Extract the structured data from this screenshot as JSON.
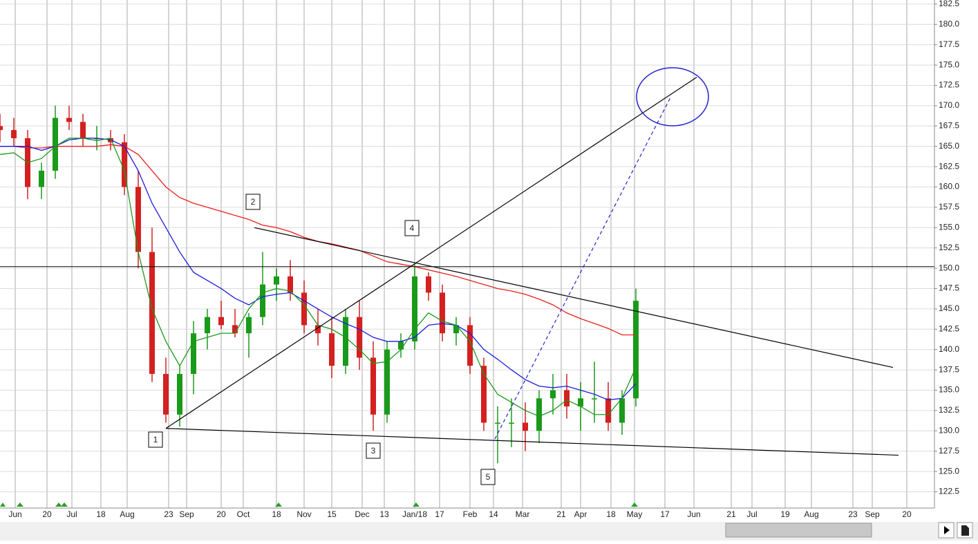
{
  "chart_data": {
    "type": "candlestick",
    "x": [
      0,
      5,
      10,
      15,
      20,
      25,
      30,
      35,
      40,
      45,
      50,
      55,
      60,
      65,
      70,
      75,
      80,
      85,
      90,
      95,
      100,
      105,
      110,
      115,
      120,
      125,
      130,
      135,
      140,
      145,
      150,
      155,
      160,
      165,
      170,
      175,
      180,
      185,
      190,
      195,
      200,
      205,
      210,
      215,
      220,
      225,
      230
    ],
    "open": [
      167.5,
      167,
      166,
      160,
      162,
      168.5,
      168,
      166,
      166,
      165.5,
      160,
      152,
      137,
      132,
      137,
      142,
      144,
      143,
      142,
      144,
      148,
      149,
      147,
      143,
      142,
      138,
      144,
      139,
      132,
      140,
      141,
      149,
      147,
      142,
      143,
      138,
      131,
      131,
      131,
      130,
      134,
      135,
      133,
      134,
      134,
      131,
      134
    ],
    "high": [
      169,
      168.5,
      167,
      163,
      170,
      170,
      169,
      167.5,
      167,
      166.5,
      162,
      155,
      139,
      138,
      143.5,
      145,
      146,
      145,
      144.5,
      152,
      150,
      151,
      148.5,
      145,
      144,
      145,
      146,
      141,
      141,
      142,
      150.5,
      149.5,
      148,
      144,
      144,
      139,
      133,
      134,
      133.5,
      135,
      137,
      137,
      136,
      138.5,
      136,
      135,
      147.5
    ],
    "low": [
      165.5,
      165,
      158.5,
      158.5,
      161,
      167,
      165,
      164.5,
      164.5,
      159,
      150,
      136,
      131,
      130.5,
      134.5,
      140,
      142.5,
      141.5,
      139,
      143,
      146,
      146,
      142,
      140.5,
      136.5,
      137,
      137.5,
      130,
      131,
      139,
      140,
      146,
      141,
      140.5,
      137,
      130,
      126,
      128,
      127.5,
      128.5,
      132,
      131.5,
      130,
      131,
      130,
      129.5,
      133
    ],
    "close": [
      167,
      166,
      160,
      162,
      168.5,
      168,
      166,
      166,
      165.5,
      160,
      152,
      137,
      132,
      137,
      142,
      144,
      143,
      142,
      144,
      148,
      149,
      147,
      143,
      142,
      138,
      144,
      139,
      132,
      140,
      141,
      149,
      147,
      142,
      143,
      138,
      131,
      131,
      131,
      130,
      134,
      135,
      133,
      134,
      134,
      131,
      134,
      146
    ],
    "up_color": "#1a9a1a",
    "down_color": "#d42020",
    "series": [
      {
        "color": "#e8201c",
        "values": [
          165,
          165,
          164.8,
          164.8,
          165,
          165,
          165,
          165,
          165.2,
          165,
          164,
          162,
          160,
          158.7,
          158,
          157.5,
          157,
          156.5,
          156,
          155.3,
          155,
          154.5,
          153.8,
          153.3,
          153,
          152.6,
          152.2,
          151.5,
          150.8,
          150.5,
          150.2,
          149.8,
          149.4,
          149,
          148.5,
          148,
          147.5,
          147.2,
          146.8,
          146.2,
          145.5,
          144.5,
          143.8,
          143.2,
          142.6,
          141.8,
          141.8
        ]
      },
      {
        "color": "#1c1ce0",
        "values": [
          165,
          165,
          165,
          164.5,
          165,
          165.8,
          166,
          166,
          165.8,
          165,
          162,
          158,
          155,
          152,
          149.5,
          148.5,
          147.5,
          146.3,
          145.5,
          146.5,
          146.8,
          147,
          146,
          145,
          144,
          143.2,
          142.5,
          141.5,
          141,
          141,
          141.5,
          143,
          143.2,
          143,
          142,
          140,
          138.8,
          137.5,
          136.3,
          135.5,
          135.3,
          135.5,
          135,
          134.5,
          133.8,
          134,
          135.8
        ]
      },
      {
        "color": "#1a9a1a",
        "values": [
          164,
          164.2,
          163,
          163.5,
          165,
          166,
          166,
          165.7,
          166,
          162,
          152,
          145,
          141,
          138,
          141,
          141.5,
          142,
          142,
          145,
          147,
          147.5,
          147.2,
          145.5,
          143,
          142.5,
          141.5,
          140,
          138.3,
          138.5,
          140,
          142.5,
          144.5,
          143.5,
          143,
          141,
          137,
          134.5,
          133.5,
          132.5,
          131.8,
          132.5,
          133.8,
          133,
          132,
          132,
          134,
          137.8
        ]
      }
    ],
    "trendlines": [
      {
        "x": [
          60,
          325
        ],
        "y": [
          130.3,
          127
        ],
        "color": "#000",
        "dashed": false
      },
      {
        "x": [
          60,
          252
        ],
        "y": [
          130.3,
          173.5
        ],
        "color": "#000",
        "dashed": false
      },
      {
        "x": [
          92,
          323
        ],
        "y": [
          155,
          137.8
        ],
        "color": "#000",
        "dashed": false
      },
      {
        "x": [
          179,
          242.5
        ],
        "y": [
          129,
          171
        ],
        "color": "#2020d0",
        "dashed": true
      }
    ],
    "hline": 150.2,
    "annotations": [
      "1",
      "2",
      "3",
      "4",
      "5"
    ],
    "xlim": [
      0,
      338
    ],
    "ylim": [
      120.5,
      183
    ],
    "xticks": [
      {
        "value": 5.5,
        "label": "Jun"
      },
      {
        "value": 17,
        "label": "20"
      },
      {
        "value": 26,
        "label": "Jul"
      },
      {
        "value": 36.5,
        "label": "18"
      },
      {
        "value": 46,
        "label": "Aug"
      },
      {
        "value": 61,
        "label": "23"
      },
      {
        "value": 67.5,
        "label": "Sep"
      },
      {
        "value": 80,
        "label": "20"
      },
      {
        "value": 88,
        "label": "Oct"
      },
      {
        "value": 100,
        "label": "18"
      },
      {
        "value": 110,
        "label": "Nov"
      },
      {
        "value": 120,
        "label": "15"
      },
      {
        "value": 131,
        "label": "Dec"
      },
      {
        "value": 139,
        "label": "13"
      },
      {
        "value": 150,
        "label": "Jan/18"
      },
      {
        "value": 159,
        "label": "17"
      },
      {
        "value": 170,
        "label": "Feb"
      },
      {
        "value": 178.5,
        "label": "14"
      },
      {
        "value": 189,
        "label": "Mar"
      },
      {
        "value": 203,
        "label": "21"
      },
      {
        "value": 210,
        "label": "Apr"
      },
      {
        "value": 221,
        "label": "18"
      },
      {
        "value": 229.5,
        "label": "May"
      },
      {
        "value": 240.5,
        "label": "17"
      },
      {
        "value": 251,
        "label": "Jun"
      },
      {
        "value": 264.5,
        "label": "21"
      },
      {
        "value": 272,
        "label": "Jul"
      },
      {
        "value": 284,
        "label": "19"
      },
      {
        "value": 293.5,
        "label": "Aug"
      },
      {
        "value": 308.5,
        "label": "23"
      },
      {
        "value": 315.5,
        "label": "Sep"
      },
      {
        "value": 328,
        "label": "20"
      }
    ],
    "yticks": [
      {
        "value": 122.5,
        "label": "122.5"
      },
      {
        "value": 125,
        "label": "125.0"
      },
      {
        "value": 127.5,
        "label": "127.5"
      },
      {
        "value": 130,
        "label": "130.0"
      },
      {
        "value": 132.5,
        "label": "132.5"
      },
      {
        "value": 135,
        "label": "135.0"
      },
      {
        "value": 137.5,
        "label": "137.5"
      },
      {
        "value": 140,
        "label": "140.0"
      },
      {
        "value": 142.5,
        "label": "142.5"
      },
      {
        "value": 145,
        "label": "145.0"
      },
      {
        "value": 147.5,
        "label": "147.5"
      },
      {
        "value": 150,
        "label": "150.0"
      },
      {
        "value": 152.5,
        "label": "152.5"
      },
      {
        "value": 155,
        "label": "155.0"
      },
      {
        "value": 157.5,
        "label": "157.5"
      },
      {
        "value": 160,
        "label": "160.0"
      },
      {
        "value": 162.5,
        "label": "162.5"
      },
      {
        "value": 165,
        "label": "165.0"
      },
      {
        "value": 167.5,
        "label": "167.5"
      },
      {
        "value": 170,
        "label": "170.0"
      },
      {
        "value": 172.5,
        "label": "172.5"
      },
      {
        "value": 175,
        "label": "175.0"
      },
      {
        "value": 177.5,
        "label": "177.5"
      },
      {
        "value": 180,
        "label": "180.0"
      },
      {
        "value": 182.5,
        "label": "182.5"
      }
    ],
    "grid": true
  }
}
